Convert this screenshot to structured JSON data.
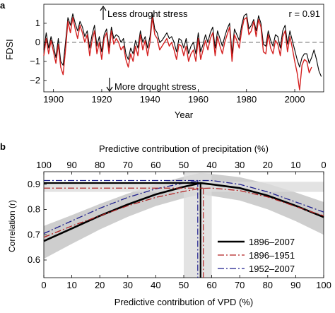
{
  "chart_data": [
    {
      "panel": "a",
      "type": "line",
      "ylabel": "FDSI",
      "xlabel": "Year",
      "xlim": [
        1896,
        2012
      ],
      "ylim": [
        -2.6,
        2.0
      ],
      "xticks": [
        1900,
        1920,
        1940,
        1960,
        1980,
        2000
      ],
      "yticks": [
        -2,
        -1,
        0,
        1
      ],
      "annotations": {
        "top": "Less drought stress",
        "bottom": "More drought stress",
        "corr": "r = 0.91"
      },
      "series": [
        {
          "color": "#000000",
          "x": [
            1896,
            1897,
            1898,
            1899,
            1900,
            1901,
            1902,
            1903,
            1904,
            1905,
            1906,
            1907,
            1908,
            1909,
            1910,
            1911,
            1912,
            1913,
            1914,
            1915,
            1916,
            1917,
            1918,
            1919,
            1920,
            1921,
            1922,
            1923,
            1924,
            1925,
            1926,
            1927,
            1928,
            1929,
            1930,
            1931,
            1932,
            1933,
            1934,
            1935,
            1936,
            1937,
            1938,
            1939,
            1940,
            1941,
            1942,
            1943,
            1944,
            1945,
            1946,
            1947,
            1948,
            1949,
            1950,
            1951,
            1952,
            1953,
            1954,
            1955,
            1956,
            1957,
            1958,
            1959,
            1960,
            1961,
            1962,
            1963,
            1964,
            1965,
            1966,
            1967,
            1968,
            1969,
            1970,
            1971,
            1972,
            1973,
            1974,
            1975,
            1976,
            1977,
            1978,
            1979,
            1980,
            1981,
            1982,
            1983,
            1984,
            1985,
            1986,
            1987,
            1988,
            1989,
            1990,
            1991,
            1992,
            1993,
            1994,
            1995,
            1996,
            1997,
            1998,
            1999,
            2000,
            2001,
            2002,
            2003,
            2004,
            2005,
            2006,
            2007,
            2008,
            2009,
            2010,
            2011
          ],
          "values": [
            -0.4,
            0.5,
            -0.3,
            0.3,
            -0.2,
            -0.8,
            0.2,
            -1.0,
            -1.2,
            0.0,
            1.3,
            0.9,
            1.5,
            1.0,
            0.6,
            1.1,
            0.8,
            0.3,
            0.6,
            -0.3,
            0.4,
            0.9,
            -0.2,
            0.3,
            -0.5,
            0.4,
            0.7,
            -0.3,
            0.8,
            0.2,
            0.4,
            0.3,
            0.0,
            0.2,
            -0.6,
            -0.9,
            -0.3,
            -0.6,
            0.1,
            -0.3,
            0.6,
            0.0,
            0.3,
            -0.3,
            0.3,
            1.5,
            0.7,
            0.5,
            0.0,
            0.1,
            0.3,
            0.5,
            0.2,
            0.3,
            0.0,
            -0.5,
            0.2,
            0.1,
            -0.3,
            0.2,
            -0.6,
            -0.2,
            0.0,
            -0.6,
            0.5,
            -0.5,
            -0.1,
            0.4,
            0.0,
            0.5,
            0.8,
            -0.3,
            0.6,
            0.2,
            -0.2,
            0.3,
            0.7,
            1.0,
            -0.6,
            0.7,
            0.4,
            0.1,
            0.9,
            1.4,
            1.5,
            0.7,
            0.9,
            1.2,
            0.6,
            1.4,
            1.0,
            -0.1,
            -0.2,
            0.6,
            0.1,
            -0.2,
            0.4,
            0.3,
            -0.3,
            0.6,
            0.9,
            -0.1,
            0.6,
            0.1,
            -0.4,
            -0.9,
            -1.3,
            -0.8,
            -0.6,
            -0.6,
            -1.1,
            -0.8,
            -0.4,
            -0.9,
            -1.5,
            -1.8
          ]
        },
        {
          "color": "#d42020",
          "x": [
            1896,
            1897,
            1898,
            1899,
            1900,
            1901,
            1902,
            1903,
            1904,
            1905,
            1906,
            1907,
            1908,
            1909,
            1910,
            1911,
            1912,
            1913,
            1914,
            1915,
            1916,
            1917,
            1918,
            1919,
            1920,
            1921,
            1922,
            1923,
            1924,
            1925,
            1926,
            1927,
            1928,
            1929,
            1930,
            1931,
            1932,
            1933,
            1934,
            1935,
            1936,
            1937,
            1938,
            1939,
            1940,
            1941,
            1942,
            1943,
            1944,
            1945,
            1946,
            1947,
            1948,
            1949,
            1950,
            1951,
            1952,
            1953,
            1954,
            1955,
            1956,
            1957,
            1958,
            1959,
            1960,
            1961,
            1962,
            1963,
            1964,
            1965,
            1966,
            1967,
            1968,
            1969,
            1970,
            1971,
            1972,
            1973,
            1974,
            1975,
            1976,
            1977,
            1978,
            1979,
            1980,
            1981,
            1982,
            1983,
            1984,
            1985,
            1986,
            1987,
            1988,
            1989,
            1990,
            1991,
            1992,
            1993,
            1994,
            1995,
            1996,
            1997,
            1998,
            1999,
            2000,
            2001,
            2002,
            2003,
            2004,
            2005,
            2006,
            2007
          ],
          "values": [
            -0.7,
            0.2,
            -0.6,
            0.1,
            -0.5,
            -1.1,
            -0.1,
            -1.3,
            -1.7,
            -0.4,
            1.1,
            0.5,
            1.3,
            0.7,
            0.2,
            0.9,
            0.5,
            0.0,
            0.4,
            -0.7,
            0.1,
            0.6,
            -0.6,
            0.0,
            -0.9,
            0.2,
            0.5,
            -0.6,
            0.6,
            -0.1,
            0.2,
            0.0,
            -0.4,
            -0.2,
            -0.9,
            -1.3,
            -0.6,
            -1.0,
            -0.2,
            -0.7,
            0.4,
            -0.4,
            0.1,
            -0.7,
            0.0,
            1.3,
            0.4,
            0.2,
            -0.4,
            -0.2,
            0.0,
            0.2,
            -0.2,
            0.0,
            -0.4,
            -0.9,
            -0.1,
            -0.2,
            -0.7,
            -0.2,
            -1.0,
            -0.6,
            -0.4,
            -1.0,
            0.2,
            -0.9,
            -0.4,
            0.1,
            -0.4,
            0.2,
            0.5,
            -0.7,
            0.3,
            -0.2,
            -0.6,
            0.0,
            0.4,
            0.8,
            -1.0,
            0.4,
            0.1,
            -0.3,
            0.6,
            1.2,
            1.3,
            0.4,
            0.6,
            1.1,
            0.3,
            1.2,
            0.8,
            -0.5,
            -0.6,
            0.4,
            -0.3,
            -0.6,
            0.1,
            -0.1,
            -0.7,
            0.3,
            0.6,
            -0.5,
            0.3,
            -0.3,
            -1.0,
            -1.6,
            -2.5,
            -1.2,
            -0.9,
            -1.0,
            -1.6,
            -1.3
          ]
        }
      ]
    },
    {
      "panel": "b",
      "type": "line",
      "xlabel": "Predictive contribution of VPD (%)",
      "top_xlabel": "Predictive contribution of precipitation (%)",
      "ylabel": "Correlation (r)",
      "xlim": [
        0,
        100
      ],
      "ylim": [
        0.53,
        0.95
      ],
      "xticks": [
        0,
        10,
        20,
        30,
        40,
        50,
        60,
        70,
        80,
        90,
        100
      ],
      "top_xticks": [
        100,
        90,
        80,
        70,
        60,
        50,
        40,
        30,
        20,
        10,
        0
      ],
      "yticks": [
        0.6,
        0.7,
        0.8,
        0.9
      ],
      "series": [
        {
          "name": "1896–2007",
          "color": "#000000",
          "dash": "solid",
          "x": [
            0,
            10,
            20,
            30,
            40,
            50,
            56,
            60,
            70,
            80,
            90,
            100
          ],
          "values": [
            0.675,
            0.725,
            0.775,
            0.82,
            0.86,
            0.89,
            0.905,
            0.9,
            0.885,
            0.855,
            0.815,
            0.77
          ]
        },
        {
          "name": "1896–1951",
          "color": "#b22222",
          "dash": "dashdot",
          "x": [
            0,
            10,
            20,
            30,
            40,
            50,
            56,
            60,
            70,
            80,
            90,
            100
          ],
          "values": [
            0.69,
            0.735,
            0.775,
            0.815,
            0.848,
            0.872,
            0.884,
            0.885,
            0.875,
            0.85,
            0.812,
            0.775
          ]
        },
        {
          "name": "1952–2007",
          "color": "#1c1c8c",
          "dash": "dashdot",
          "x": [
            0,
            10,
            20,
            30,
            40,
            50,
            56,
            60,
            70,
            80,
            90,
            100
          ],
          "values": [
            0.705,
            0.755,
            0.805,
            0.848,
            0.882,
            0.905,
            0.915,
            0.915,
            0.9,
            0.87,
            0.83,
            0.79
          ]
        }
      ],
      "optimum_x": {
        "series1": 56,
        "series2": 57,
        "series3": 55
      },
      "optimum_band": {
        "x": [
          50,
          60
        ],
        "y": [
          0.87,
          0.91
        ]
      }
    }
  ]
}
